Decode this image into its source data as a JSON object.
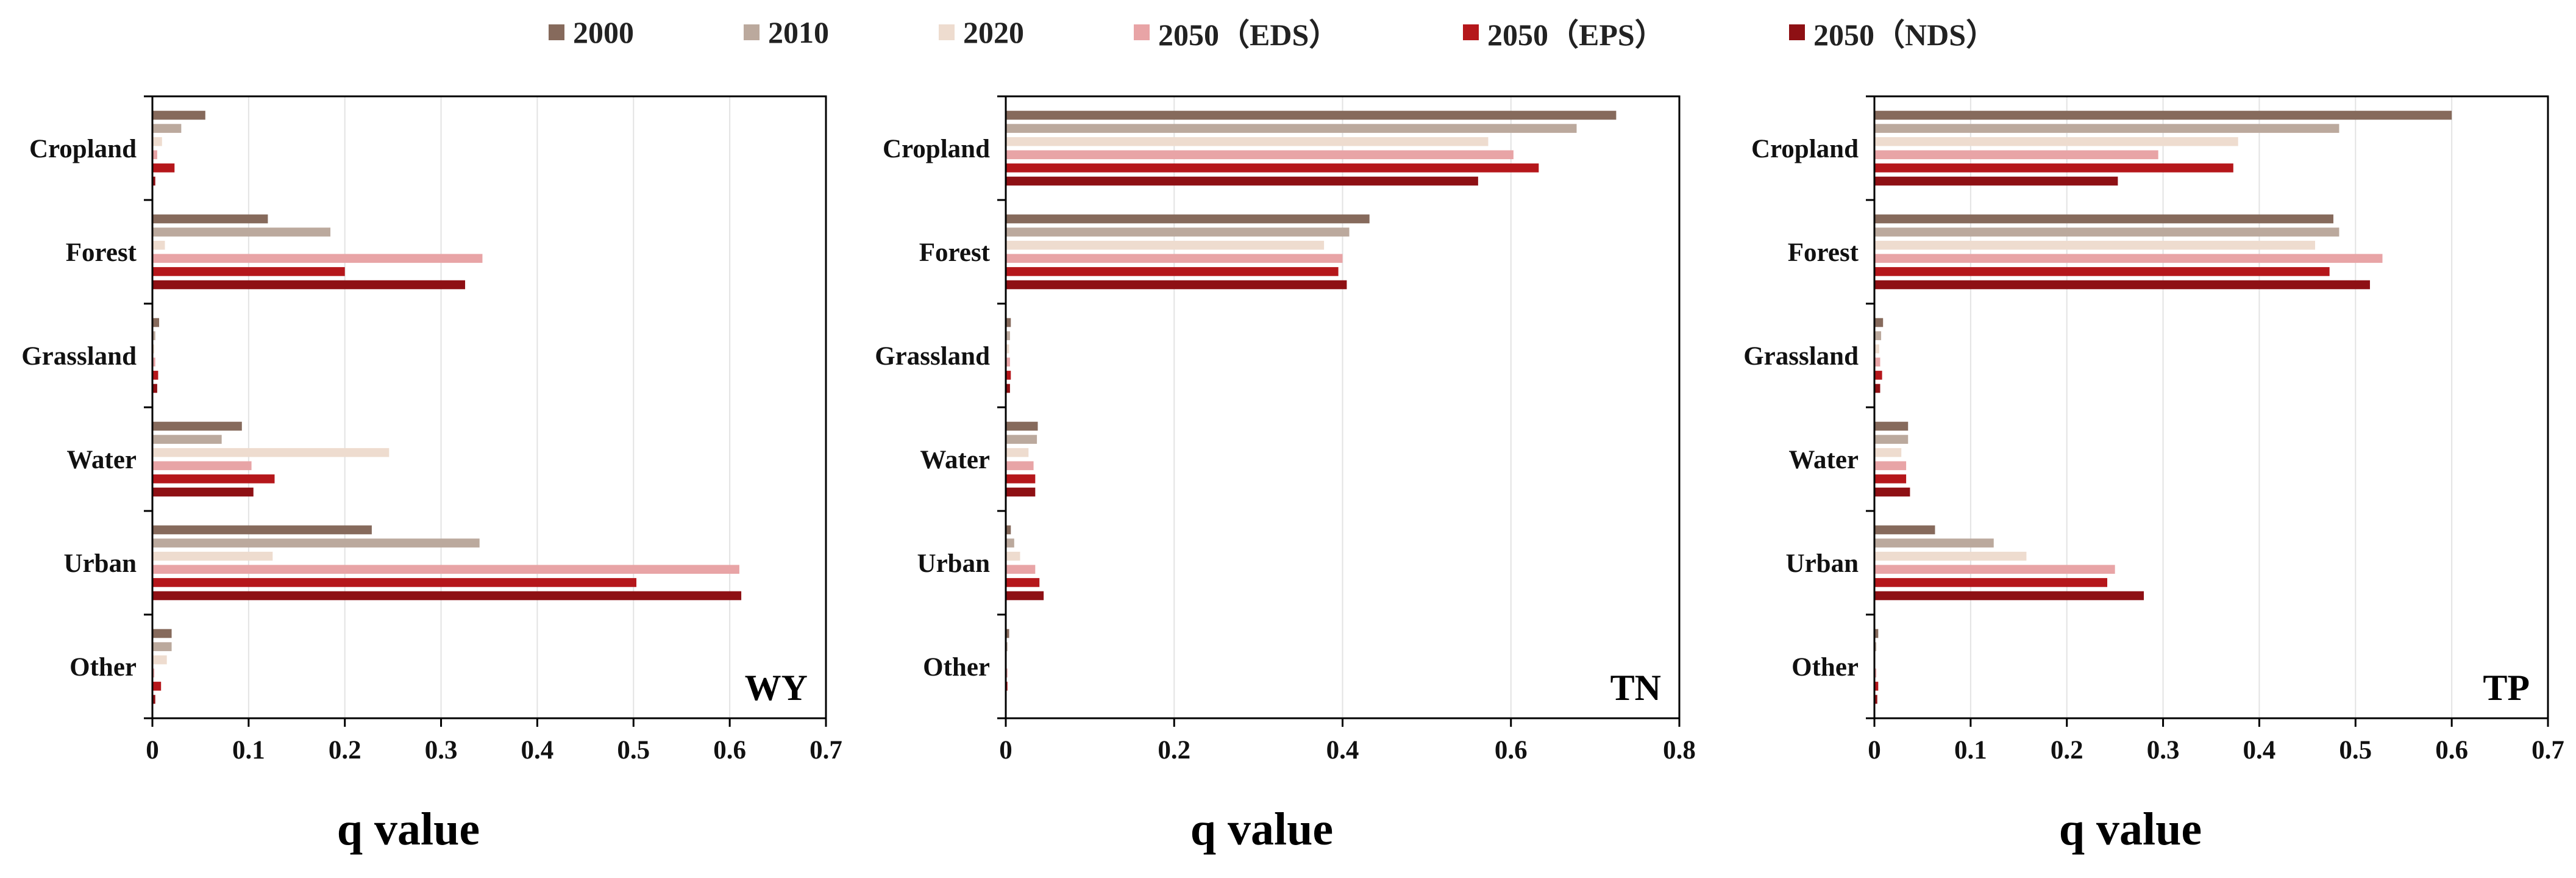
{
  "legend": [
    {
      "label": "2000",
      "color": "#866a5c"
    },
    {
      "label": "2010",
      "color": "#bba99d"
    },
    {
      "label": "2020",
      "color": "#eedccf"
    },
    {
      "label": "2050（EDS）",
      "color": "#e8a4a6"
    },
    {
      "label": "2050（EPS）",
      "color": "#b5171b"
    },
    {
      "label": "2050（NDS）",
      "color": "#8e1014"
    }
  ],
  "chart_data": [
    {
      "type": "bar",
      "orientation": "horizontal",
      "title": "WY",
      "xlabel": "q value",
      "categories": [
        "Cropland",
        "Forest",
        "Grassland",
        "Water",
        "Urban",
        "Other"
      ],
      "xlim": [
        0,
        0.7
      ],
      "xticks": [
        "0",
        "0.1",
        "0.2",
        "0.3",
        "0.4",
        "0.5",
        "0.6",
        "0.7"
      ],
      "grid": true,
      "series": [
        {
          "name": "2000",
          "values": [
            0.055,
            0.12,
            0.007,
            0.093,
            0.228,
            0.02
          ]
        },
        {
          "name": "2010",
          "values": [
            0.03,
            0.185,
            0.003,
            0.072,
            0.34,
            0.02
          ]
        },
        {
          "name": "2020",
          "values": [
            0.01,
            0.013,
            0.002,
            0.246,
            0.125,
            0.015
          ]
        },
        {
          "name": "2050（EDS）",
          "values": [
            0.005,
            0.343,
            0.003,
            0.103,
            0.61,
            0.002
          ]
        },
        {
          "name": "2050（EPS）",
          "values": [
            0.023,
            0.2,
            0.006,
            0.127,
            0.503,
            0.009
          ]
        },
        {
          "name": "2050（NDS）",
          "values": [
            0.003,
            0.325,
            0.005,
            0.105,
            0.612,
            0.003
          ]
        }
      ]
    },
    {
      "type": "bar",
      "orientation": "horizontal",
      "title": "TN",
      "xlabel": "q value",
      "categories": [
        "Cropland",
        "Forest",
        "Grassland",
        "Water",
        "Urban",
        "Other"
      ],
      "xlim": [
        0,
        0.8
      ],
      "xticks": [
        "0",
        "0.2",
        "0.4",
        "0.6",
        "0.8"
      ],
      "grid": true,
      "series": [
        {
          "name": "2000",
          "values": [
            0.725,
            0.432,
            0.006,
            0.038,
            0.006,
            0.004
          ]
        },
        {
          "name": "2010",
          "values": [
            0.678,
            0.408,
            0.005,
            0.037,
            0.01,
            0.002
          ]
        },
        {
          "name": "2020",
          "values": [
            0.573,
            0.378,
            0.004,
            0.027,
            0.017,
            0.001
          ]
        },
        {
          "name": "2050（EDS）",
          "values": [
            0.603,
            0.4,
            0.005,
            0.033,
            0.035,
            0.002
          ]
        },
        {
          "name": "2050（EPS）",
          "values": [
            0.633,
            0.395,
            0.006,
            0.035,
            0.04,
            0.002
          ]
        },
        {
          "name": "2050（NDS）",
          "values": [
            0.561,
            0.405,
            0.005,
            0.035,
            0.045,
            0.001
          ]
        }
      ]
    },
    {
      "type": "bar",
      "orientation": "horizontal",
      "title": "TP",
      "xlabel": "q value",
      "categories": [
        "Cropland",
        "Forest",
        "Grassland",
        "Water",
        "Urban",
        "Other"
      ],
      "xlim": [
        0,
        0.7
      ],
      "xticks": [
        "0",
        "0.1",
        "0.2",
        "0.3",
        "0.4",
        "0.5",
        "0.6",
        "0.7"
      ],
      "grid": true,
      "series": [
        {
          "name": "2000",
          "values": [
            0.6,
            0.477,
            0.009,
            0.035,
            0.063,
            0.004
          ]
        },
        {
          "name": "2010",
          "values": [
            0.483,
            0.483,
            0.007,
            0.035,
            0.124,
            0.002
          ]
        },
        {
          "name": "2020",
          "values": [
            0.378,
            0.458,
            0.005,
            0.028,
            0.158,
            0.001
          ]
        },
        {
          "name": "2050（EDS）",
          "values": [
            0.295,
            0.528,
            0.006,
            0.033,
            0.25,
            0.002
          ]
        },
        {
          "name": "2050（EPS）",
          "values": [
            0.373,
            0.473,
            0.008,
            0.033,
            0.242,
            0.004
          ]
        },
        {
          "name": "2050（NDS）",
          "values": [
            0.253,
            0.515,
            0.006,
            0.037,
            0.28,
            0.003
          ]
        }
      ]
    }
  ]
}
